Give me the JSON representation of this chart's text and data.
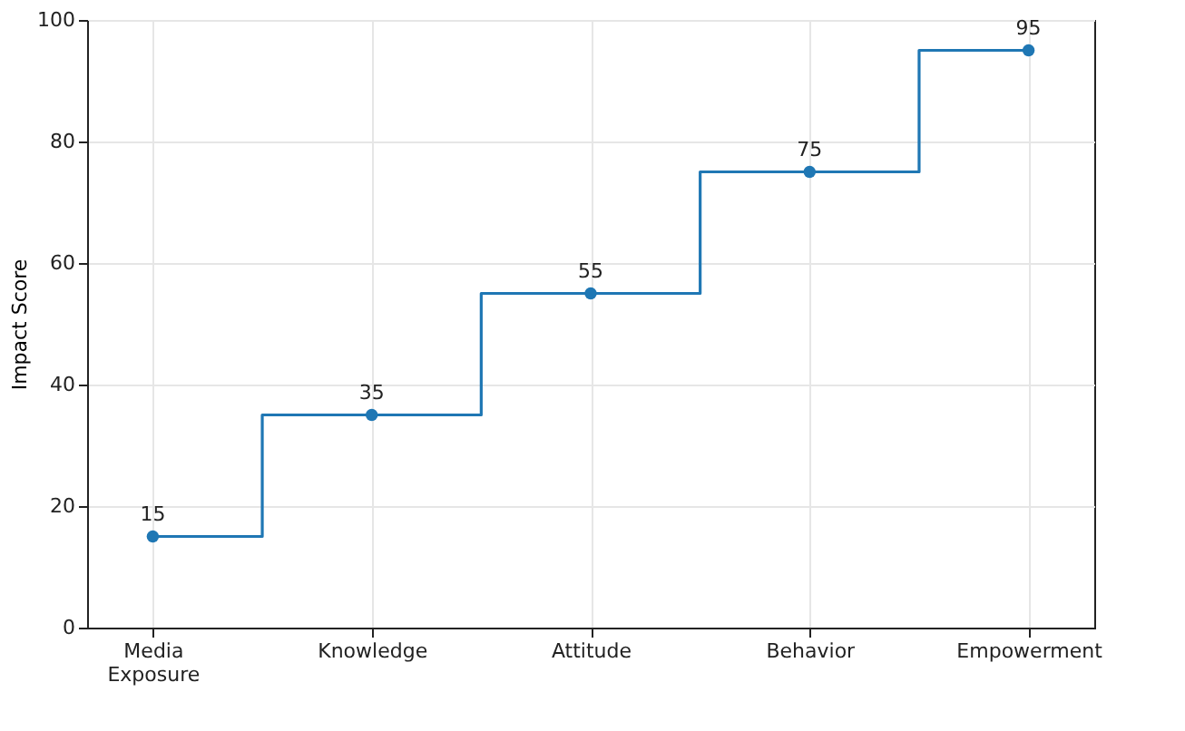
{
  "chart_data": {
    "type": "step",
    "ylabel": "Impact Score",
    "categories": [
      "Media Exposure",
      "Knowledge",
      "Attitude",
      "Behavior",
      "Empowerment"
    ],
    "values": [
      15,
      35,
      55,
      75,
      95
    ],
    "color": "#1f77b4",
    "ylim": [
      0,
      100
    ],
    "yticks": [
      0,
      20,
      40,
      60,
      80,
      100
    ],
    "grid": true,
    "marker": "circle",
    "data_labels": true
  }
}
